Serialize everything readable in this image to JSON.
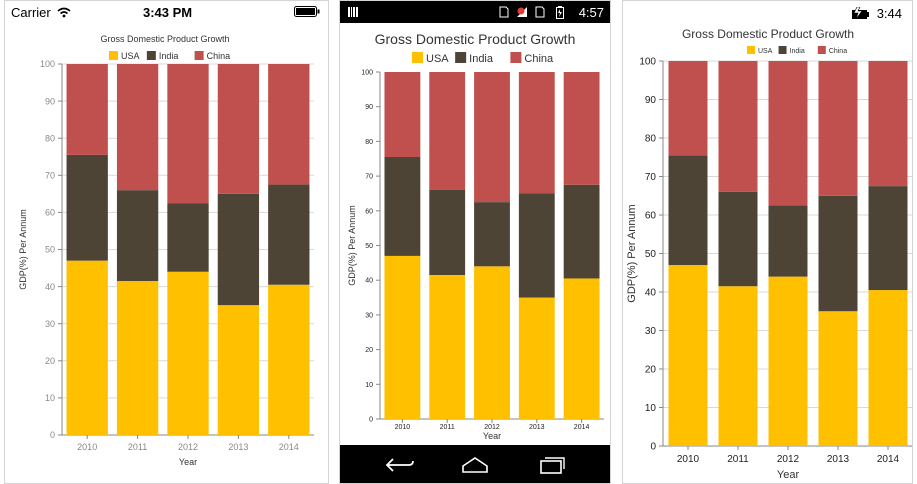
{
  "colors": {
    "USA": "#FFC000",
    "India": "#4E4436",
    "China": "#C0504D"
  },
  "ios": {
    "status": {
      "carrier": "Carrier",
      "time": "3:43 PM"
    }
  },
  "android": {
    "status": {
      "time": "4:57"
    }
  },
  "windows": {
    "status": {
      "time": "3:44"
    }
  },
  "chart_data": {
    "type": "bar",
    "stacked": true,
    "title": "Gross Domestic Product Growth",
    "xlabel": "Year",
    "ylabel": "GDP(%) Per Annum",
    "categories": [
      "2010",
      "2011",
      "2012",
      "2013",
      "2014"
    ],
    "series": [
      {
        "name": "USA",
        "values": [
          47,
          41.5,
          44,
          35,
          40.5
        ]
      },
      {
        "name": "India",
        "values": [
          28.5,
          24.5,
          18.5,
          30,
          27
        ]
      },
      {
        "name": "China",
        "values": [
          24.5,
          34,
          37.5,
          35,
          32.5
        ]
      }
    ],
    "ylim": [
      0,
      100
    ],
    "legend_position": "top",
    "grid": true
  }
}
